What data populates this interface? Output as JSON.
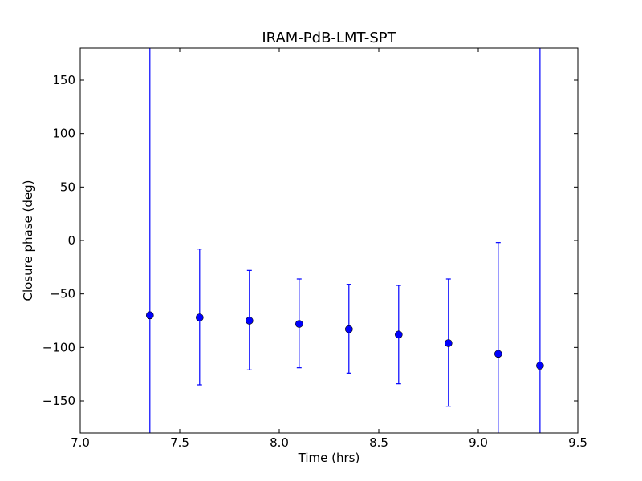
{
  "chart_data": {
    "type": "scatter",
    "title": "IRAM-PdB-LMT-SPT",
    "xlabel": "Time (hrs)",
    "ylabel": "Closure phase (deg)",
    "xlim": [
      7.0,
      9.5
    ],
    "ylim": [
      -180,
      180
    ],
    "xticks": [
      7.0,
      7.5,
      8.0,
      8.5,
      9.0,
      9.5
    ],
    "xtick_labels": [
      "7.0",
      "7.5",
      "8.0",
      "8.5",
      "9.0",
      "9.5"
    ],
    "yticks": [
      -150,
      -100,
      -50,
      0,
      50,
      100,
      150
    ],
    "ytick_labels": [
      "−150",
      "−100",
      "−50",
      "0",
      "50",
      "100",
      "150"
    ],
    "grid": false,
    "marker_color": "#0000ff",
    "points": [
      {
        "x": 7.35,
        "y": -70,
        "yerr_low": -180,
        "yerr_high": 180,
        "clipped": true
      },
      {
        "x": 7.6,
        "y": -72,
        "yerr_low": -135,
        "yerr_high": -8
      },
      {
        "x": 7.85,
        "y": -75,
        "yerr_low": -121,
        "yerr_high": -28
      },
      {
        "x": 8.1,
        "y": -78,
        "yerr_low": -119,
        "yerr_high": -36
      },
      {
        "x": 8.35,
        "y": -83,
        "yerr_low": -124,
        "yerr_high": -41
      },
      {
        "x": 8.6,
        "y": -88,
        "yerr_low": -134,
        "yerr_high": -42
      },
      {
        "x": 8.85,
        "y": -96,
        "yerr_low": -155,
        "yerr_high": -36
      },
      {
        "x": 9.1,
        "y": -106,
        "yerr_low": -180,
        "yerr_high": -2,
        "clipped_low": true
      },
      {
        "x": 9.31,
        "y": -117,
        "yerr_low": -180,
        "yerr_high": 180,
        "clipped": true
      }
    ]
  }
}
